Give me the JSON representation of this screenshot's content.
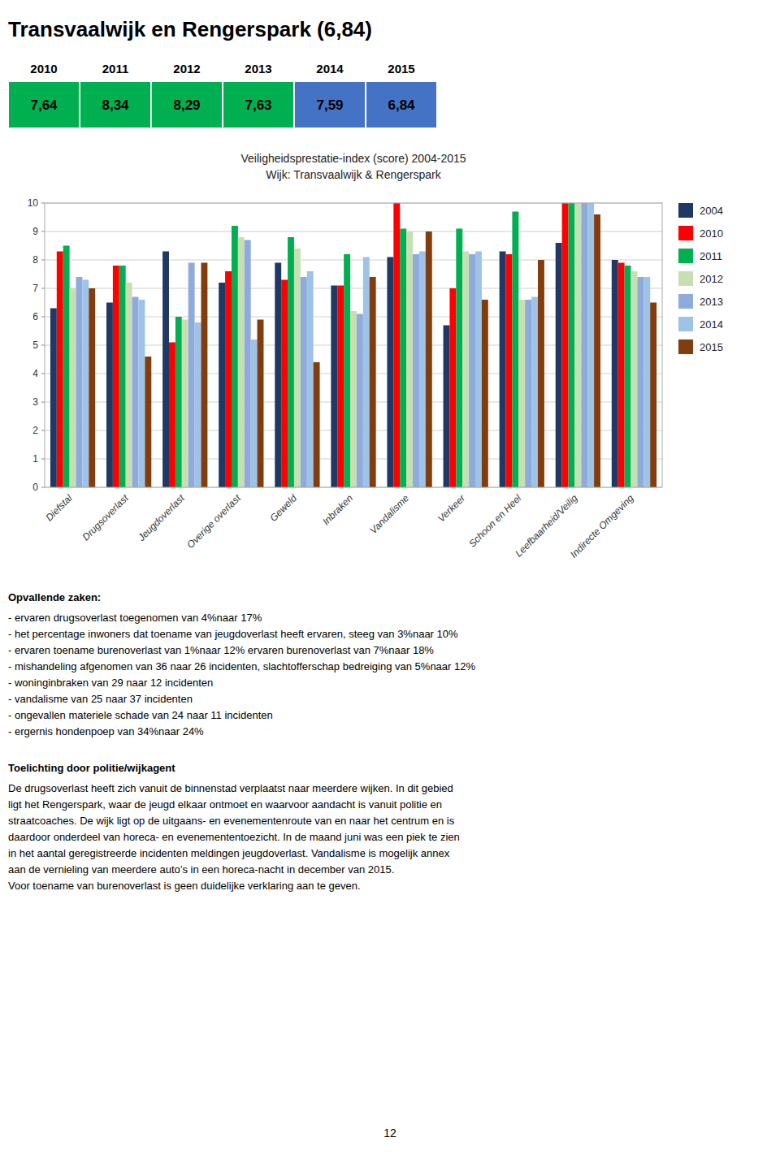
{
  "title": "Transvaalwijk en Rengerspark (6,84)",
  "chart_data": [
    {
      "type": "table",
      "categories": [
        "2010",
        "2011",
        "2012",
        "2013",
        "2014",
        "2015"
      ],
      "values": [
        7.64,
        8.34,
        8.29,
        7.63,
        7.59,
        6.84
      ],
      "value_labels": [
        "7,64",
        "8,34",
        "8,29",
        "7,63",
        "7,59",
        "6,84"
      ],
      "colors": [
        "#00b050",
        "#00b050",
        "#00b050",
        "#00b050",
        "#4472c4",
        "#4472c4"
      ]
    },
    {
      "type": "bar",
      "title": "Veiligheidsprestatie-index (score)  2004-2015",
      "subtitle": "Wijk: Transvaalwijk & Rengerspark",
      "categories": [
        "Diefstal",
        "Drugsoverlast",
        "Jeugdoverlast",
        "Overige overlast",
        "Geweld",
        "Inbraken",
        "Vandalisme",
        "Verkeer",
        "Schoon en Heel",
        "Leefbaarheid/Veilig",
        "Indirecte Omgeving"
      ],
      "series": [
        {
          "name": "2004",
          "color": "#1f3864",
          "values": [
            6.3,
            6.5,
            8.3,
            7.2,
            7.9,
            7.1,
            8.1,
            5.7,
            8.3,
            8.6,
            8.0
          ]
        },
        {
          "name": "2010",
          "color": "#ff0000",
          "values": [
            8.3,
            7.8,
            5.1,
            7.6,
            7.3,
            7.1,
            10.0,
            7.0,
            8.2,
            10.0,
            7.9
          ]
        },
        {
          "name": "2011",
          "color": "#00b050",
          "values": [
            8.5,
            7.8,
            6.0,
            9.2,
            8.8,
            8.2,
            9.1,
            9.1,
            9.7,
            10.0,
            7.8
          ]
        },
        {
          "name": "2012",
          "color": "#c6e0b4",
          "values": [
            7.0,
            7.2,
            5.9,
            8.8,
            8.4,
            6.2,
            9.0,
            8.3,
            6.6,
            10.0,
            7.6
          ]
        },
        {
          "name": "2013",
          "color": "#8faadc",
          "values": [
            7.4,
            6.7,
            7.9,
            8.7,
            7.4,
            6.1,
            8.2,
            8.2,
            6.6,
            10.0,
            7.4
          ]
        },
        {
          "name": "2014",
          "color": "#9dc3e6",
          "values": [
            7.3,
            6.6,
            5.8,
            5.2,
            7.6,
            8.1,
            8.3,
            8.3,
            6.7,
            10.0,
            7.4
          ]
        },
        {
          "name": "2015",
          "color": "#833c0b",
          "values": [
            7.0,
            4.6,
            7.9,
            5.9,
            4.4,
            7.4,
            9.0,
            6.6,
            8.0,
            9.6,
            6.5
          ]
        }
      ],
      "ylim": [
        0,
        10
      ],
      "yticks": [
        0,
        1,
        2,
        3,
        4,
        5,
        6,
        7,
        8,
        9,
        10
      ],
      "grid": true,
      "legend": "right"
    }
  ],
  "text_blocks": [
    {
      "title": "Opvallende zaken:",
      "lines": [
        "- ervaren drugsoverlast toegenomen van 4%naar 17%",
        "- het percentage inwoners dat toename van jeugdoverlast heeft ervaren, steeg van 3%naar 10%",
        "- ervaren toename burenoverlast van 1%naar 12% ervaren burenoverlast van 7%naar 18%",
        "- mishandeling afgenomen van 36 naar 26 incidenten, slachtofferschap bedreiging van 5%naar 12%",
        "- woninginbraken van 29 naar 12 incidenten",
        "- vandalisme van 25 naar 37 incidenten",
        "- ongevallen materiele schade van 24 naar 11 incidenten",
        "- ergernis hondenpoep van 34%naar 24%"
      ]
    },
    {
      "title": "Toelichting door politie/wijkagent",
      "lines": [
        "De drugsoverlast heeft zich vanuit de binnenstad verplaatst naar meerdere wijken. In dit gebied",
        "ligt het Rengerspark, waar de jeugd elkaar ontmoet en waarvoor aandacht is vanuit politie en",
        "straatcoaches. De wijk ligt op de uitgaans- en evenementenroute van en naar het centrum en is",
        "daardoor onderdeel van horeca- en evenemententoezicht. In de maand juni was een piek te zien",
        "in het aantal geregistreerde incidenten meldingen jeugdoverlast. Vandalisme is mogelijk annex",
        "aan de vernieling van meerdere auto’s in een horeca-nacht in december van 2015.",
        "Voor toename van burenoverlast is geen duidelijke verklaring aan te geven."
      ]
    }
  ],
  "page_number": "12"
}
